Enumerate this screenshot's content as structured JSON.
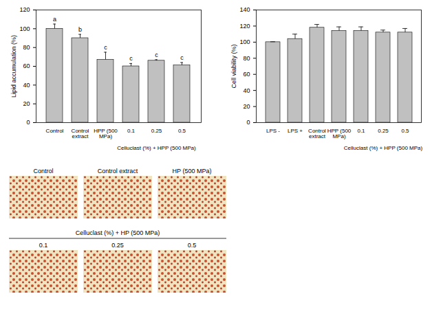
{
  "chart_data": [
    {
      "type": "bar",
      "y_label": "Lipid accumulation (%)",
      "categories": [
        "Control",
        "Control extract",
        "HPP (500 MPa)",
        "0.1",
        "0.25",
        "0.5"
      ],
      "values": [
        100,
        90,
        67,
        60,
        66,
        61
      ],
      "errors": [
        5,
        4,
        8,
        3,
        1,
        3
      ],
      "letters": [
        "a",
        "b",
        "c",
        "c",
        "c",
        "c"
      ],
      "group_label": "Celluclast (%) + HPP (500 MPa)",
      "group_members": [
        "0.1",
        "0.25",
        "0.5"
      ],
      "color": "#c0c0c0",
      "ylim": [
        0,
        120
      ],
      "yticks": [
        0,
        20,
        40,
        60,
        80,
        100,
        120
      ]
    },
    {
      "type": "bar",
      "y_label": "Cell viability (%)",
      "categories": [
        "LPS -",
        "LPS +",
        "Control extract",
        "HPP (500 MPa)",
        "0.1",
        "0.25",
        "0.5"
      ],
      "values": [
        100,
        104,
        118,
        114,
        114,
        112,
        112
      ],
      "errors": [
        0.5,
        6,
        4,
        5,
        5,
        3,
        5
      ],
      "group_label": "Celluclast (%) + HPP (500 MPa)",
      "group_members": [
        "0.1",
        "0.25",
        "0.5"
      ],
      "color": "#c0c0c0",
      "ylim": [
        0,
        140
      ],
      "yticks": [
        0,
        20,
        40,
        60,
        80,
        100,
        120,
        140
      ]
    }
  ],
  "micrographs": {
    "top_row": [
      "Control",
      "Control extract",
      "HP (500 MPa)"
    ],
    "bottom_row_title": "Celluclast (%) + HP (500 MPa)",
    "bottom_row": [
      "0.1",
      "0.25",
      "0.5"
    ]
  }
}
